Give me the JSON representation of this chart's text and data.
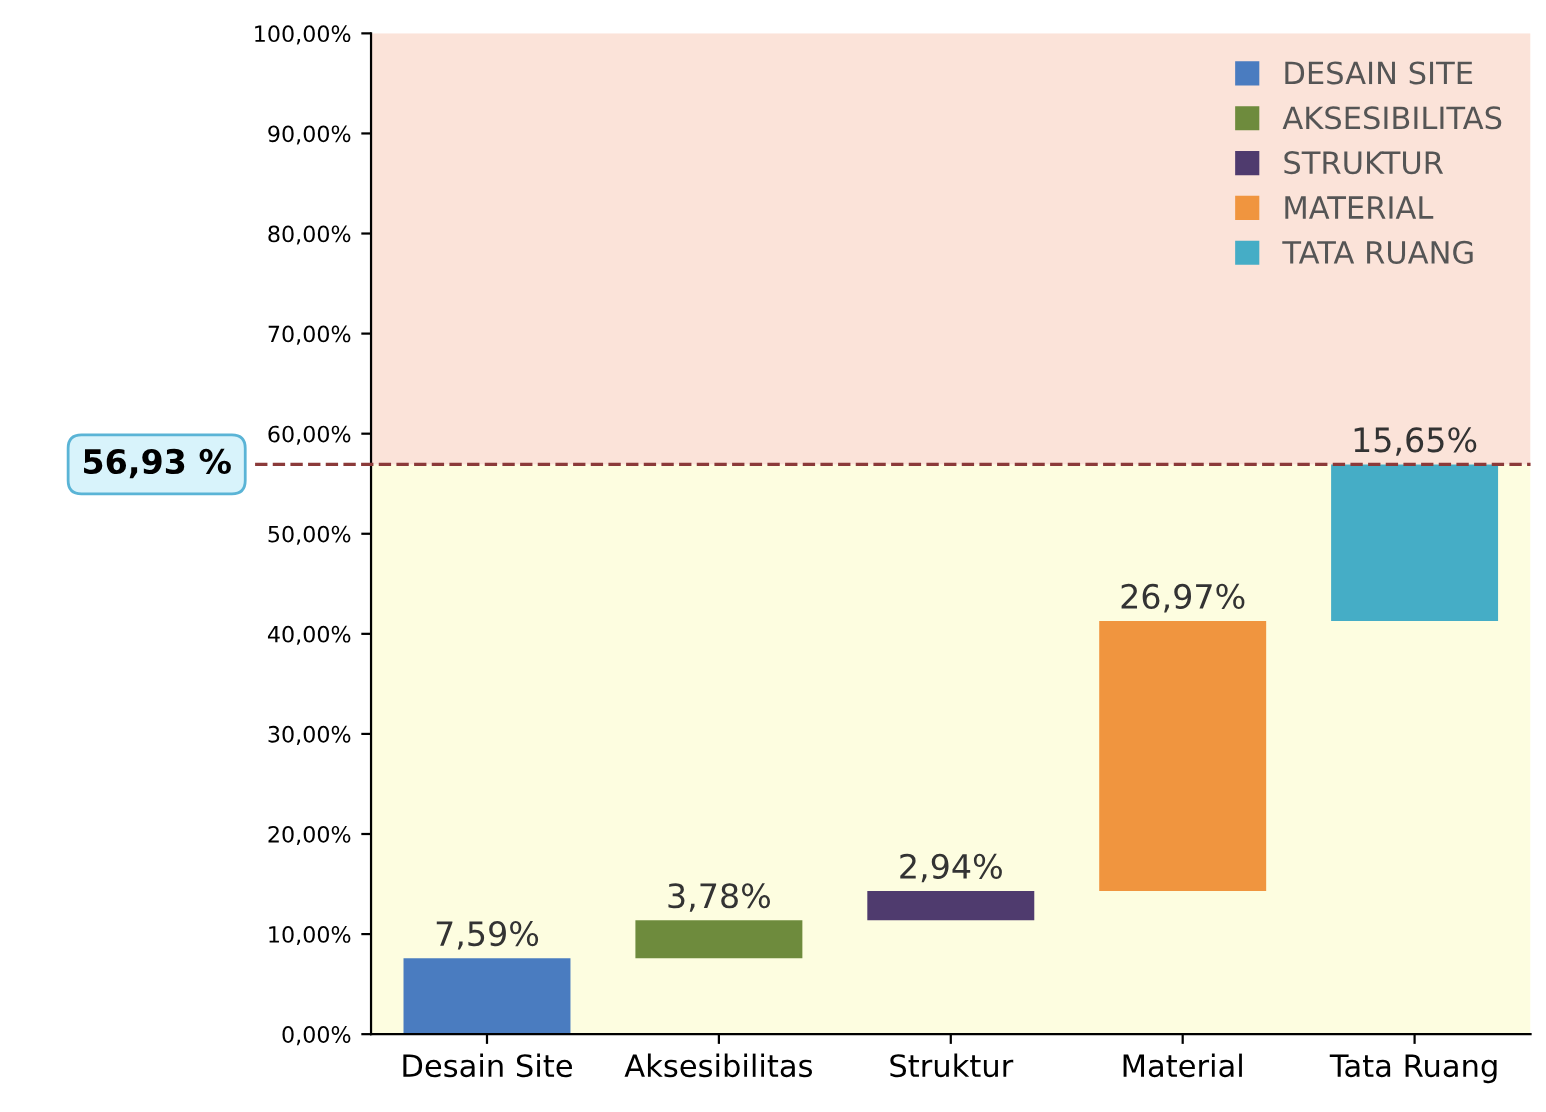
{
  "chart_data": {
    "type": "bar",
    "categories": [
      "Desain Site",
      "Aksesibilitas",
      "Struktur",
      "Material",
      "Tata Ruang"
    ],
    "series": [
      {
        "name": "DESAIN SITE",
        "color": "#4a7cc0",
        "values": [
          7.59,
          null,
          null,
          null,
          null
        ],
        "base": [
          0,
          null,
          null,
          null,
          null
        ],
        "value_labels": [
          "7,59%",
          null,
          null,
          null,
          null
        ]
      },
      {
        "name": "AKSESIBILITAS",
        "color": "#6e8b3d",
        "values": [
          null,
          3.78,
          null,
          null,
          null
        ],
        "base": [
          null,
          7.59,
          null,
          null,
          null
        ],
        "value_labels": [
          null,
          "3,78%",
          null,
          null,
          null
        ]
      },
      {
        "name": "STRUKTUR",
        "color": "#4f3b6e",
        "values": [
          null,
          null,
          2.94,
          null,
          null
        ],
        "base": [
          null,
          null,
          11.37,
          null,
          null
        ],
        "value_labels": [
          null,
          null,
          "2,94%",
          null,
          null
        ]
      },
      {
        "name": "MATERIAL",
        "color": "#f0953f",
        "values": [
          null,
          null,
          null,
          26.97,
          null
        ],
        "base": [
          null,
          null,
          null,
          14.31,
          null
        ],
        "value_labels": [
          null,
          null,
          null,
          "26,97%",
          null
        ]
      },
      {
        "name": "TATA RUANG",
        "color": "#45adc6",
        "values": [
          null,
          null,
          null,
          null,
          15.65
        ],
        "base": [
          null,
          null,
          null,
          null,
          41.28
        ],
        "value_labels": [
          null,
          null,
          null,
          null,
          "15,65%"
        ]
      }
    ],
    "legend": "top right",
    "ylim": [
      0,
      100
    ],
    "yticks": [
      {
        "value": 0,
        "label": "0,00%"
      },
      {
        "value": 10,
        "label": "10,00%"
      },
      {
        "value": 20,
        "label": "20,00%"
      },
      {
        "value": 30,
        "label": "30,00%"
      },
      {
        "value": 40,
        "label": "40,00%"
      },
      {
        "value": 50,
        "label": "50,00%"
      },
      {
        "value": 60,
        "label": "60,00%"
      },
      {
        "value": 70,
        "label": "70,00%"
      },
      {
        "value": 80,
        "label": "80,00%"
      },
      {
        "value": 90,
        "label": "90,00%"
      },
      {
        "value": 100,
        "label": "100,00%"
      }
    ],
    "ref_lines": [
      {
        "axis": "y",
        "value": 56.93,
        "label": "56,93 %",
        "color": "#8b3a3a",
        "line_style": "dashed"
      }
    ],
    "bands": [
      {
        "axis": "y",
        "from": 0,
        "to": 56.93,
        "color": "#fdfde0"
      },
      {
        "axis": "y",
        "from": 56.93,
        "to": 100,
        "color": "#fbe3d9"
      }
    ],
    "grid": false
  }
}
